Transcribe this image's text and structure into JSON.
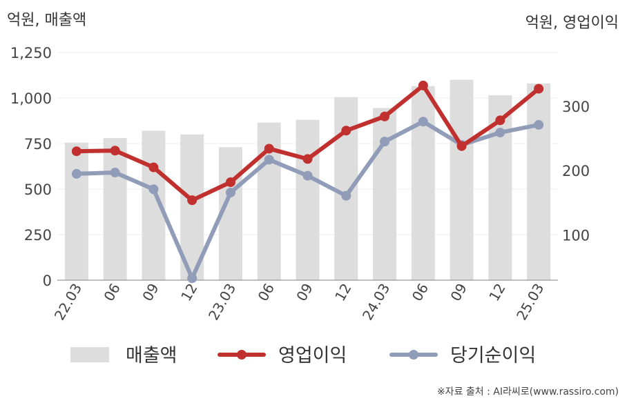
{
  "chart_data": {
    "type": "bar+line",
    "left_axis_title": "억원, 매출액",
    "right_axis_title": "억원, 영업이익",
    "categories": [
      "22.03",
      "06",
      "09",
      "12",
      "23.03",
      "06",
      "09",
      "12",
      "24.03",
      "06",
      "09",
      "12",
      "25.03"
    ],
    "left_axis": {
      "ylim": [
        0,
        1250
      ],
      "ticks": [
        0,
        250,
        500,
        750,
        "1,000",
        "1,250"
      ],
      "tick_values": [
        0,
        250,
        500,
        750,
        1000,
        1250
      ]
    },
    "right_axis": {
      "ylim": [
        30,
        383.3
      ],
      "ticks": [
        100,
        200,
        300
      ],
      "tick_values": [
        100,
        200,
        300
      ]
    },
    "grid": true,
    "legend_position": "bottom",
    "series": [
      {
        "name": "매출액",
        "type": "bar",
        "axis": "left",
        "color": "#dddddd",
        "values": [
          755,
          780,
          820,
          800,
          730,
          865,
          880,
          1005,
          945,
          1065,
          1100,
          1015,
          1080
        ]
      },
      {
        "name": "영업이익",
        "type": "line",
        "axis": "right",
        "color": "#c0302e",
        "values": [
          230,
          231,
          205,
          154,
          182,
          234,
          218,
          262,
          284,
          332,
          238,
          278,
          327
        ]
      },
      {
        "name": "당기순이익",
        "type": "line",
        "axis": "right",
        "color": "#909cb8",
        "values": [
          195,
          197,
          171,
          33,
          166,
          217,
          192,
          161,
          245,
          276,
          240,
          259,
          271
        ]
      }
    ],
    "source": "※자료 출처 : AI라씨로(www.rassiro.com)"
  }
}
